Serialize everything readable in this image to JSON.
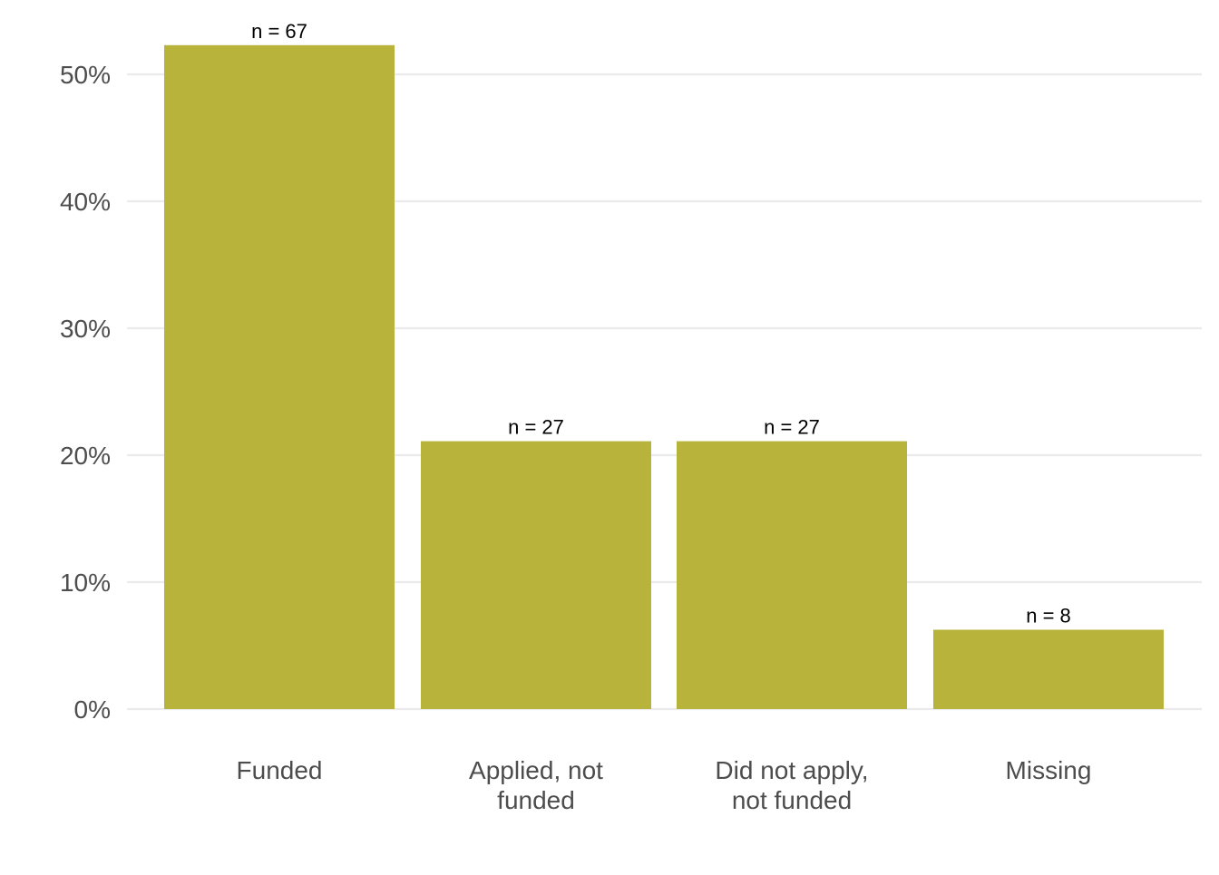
{
  "chart_data": {
    "type": "bar",
    "title": "",
    "xlabel": "",
    "ylabel": "",
    "categories": [
      "Funded",
      "Applied, not funded",
      "Did not apply, not funded",
      "Missing"
    ],
    "category_label_lines": [
      [
        "Funded"
      ],
      [
        "Applied, not",
        "funded"
      ],
      [
        "Did not apply,",
        "not funded"
      ],
      [
        "Missing"
      ]
    ],
    "values": [
      52.3,
      21.1,
      21.1,
      6.25
    ],
    "data_labels": [
      "n = 67",
      "n = 27",
      "n = 27",
      "n = 8"
    ],
    "ylim": [
      0,
      52.3
    ],
    "yticks": [
      0,
      10,
      20,
      30,
      40,
      50
    ],
    "ytick_labels": [
      "0%",
      "10%",
      "20%",
      "30%",
      "40%",
      "50%"
    ],
    "grid": true,
    "legend": "none",
    "bar_color": "#b8b33a",
    "grid_color": "#ebebeb"
  }
}
